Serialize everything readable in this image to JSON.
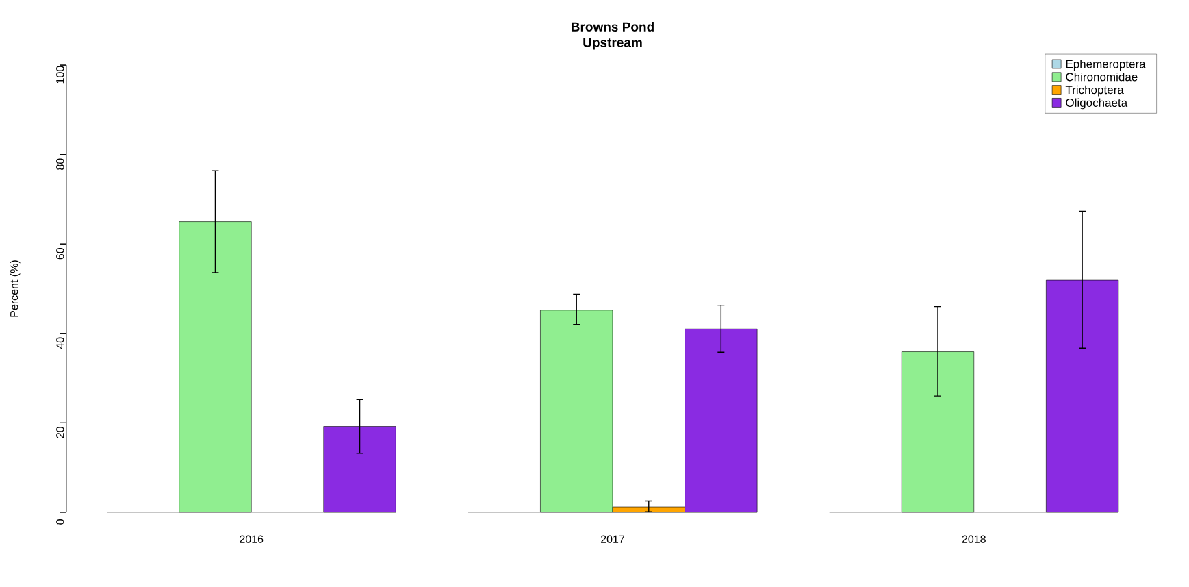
{
  "chart_data": {
    "type": "bar",
    "title": "Browns Pond",
    "subtitle": "Upstream",
    "ylabel": "Percent (%)",
    "categories": [
      "2016",
      "2017",
      "2018"
    ],
    "series": [
      {
        "name": "Ephemeroptera",
        "color": "#add8e6",
        "values": [
          0,
          0,
          0
        ]
      },
      {
        "name": "Chironomidae",
        "color": "#90ee90",
        "values": [
          65.0,
          45.2,
          35.9
        ],
        "errors": [
          [
            53.6,
            76.4
          ],
          [
            42.0,
            48.8
          ],
          [
            26.0,
            46.0
          ]
        ]
      },
      {
        "name": "Trichoptera",
        "color": "#ffa500",
        "values": [
          0,
          1.2,
          0
        ],
        "errors": [
          null,
          [
            0.1,
            2.5
          ],
          null
        ]
      },
      {
        "name": "Oligochaeta",
        "color": "#8a2be2",
        "values": [
          19.2,
          41.0,
          51.9
        ],
        "errors": [
          [
            13.2,
            25.2
          ],
          [
            35.8,
            46.3
          ],
          [
            36.7,
            67.3
          ]
        ]
      }
    ],
    "ylim": [
      0,
      100
    ],
    "yticks": [
      0,
      20,
      40,
      60,
      80,
      100
    ],
    "legend": "top right"
  }
}
